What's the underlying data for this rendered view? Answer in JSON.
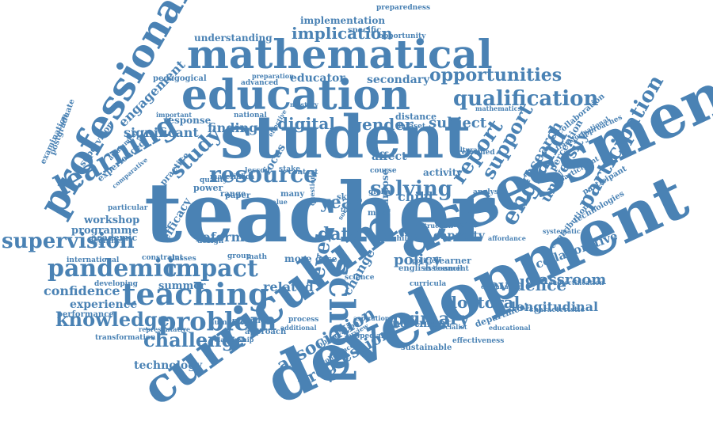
{
  "color": "#4a82b4",
  "words": [
    "teacher",
    "assessment",
    "development",
    "student",
    "curriculum",
    "education",
    "mathematical",
    "professional",
    "teaching",
    "learning",
    "pandemic",
    "impact",
    "school",
    "problem",
    "resource",
    "qualification",
    "supervision",
    "knowledge",
    "challenge",
    "opportunities",
    "implication",
    "england",
    "report",
    "support",
    "participation",
    "primary",
    "research",
    "university",
    "association",
    "progression",
    "evidence",
    "doctoral",
    "classroom",
    "longitudinal",
    "collaborative",
    "solving",
    "study",
    "gender",
    "subject",
    "digital",
    "finding",
    "significant",
    "engagement",
    "confidence",
    "experience",
    "workshop",
    "programme",
    "academic",
    "technology",
    "summer",
    "capacity",
    "policy",
    "year",
    "data",
    "level",
    "change",
    "related",
    "reform",
    "efficacy",
    "postgraduate",
    "examination",
    "supervisor",
    "pedagogical",
    "educator",
    "secondary",
    "understanding",
    "implementation",
    "specific",
    "opportunity",
    "preparedness",
    "focus",
    "distance",
    "english",
    "enactment",
    "department",
    "perception",
    "technologies",
    "participant",
    "council",
    "learner",
    "performance",
    "transformation",
    "reflection",
    "approach",
    "process",
    "children",
    "child",
    "many",
    "more",
    "gcse",
    "context",
    "africa",
    "power",
    "range",
    "group",
    "math",
    "constraint",
    "classes",
    "international",
    "developing",
    "paper",
    "practice",
    "response",
    "experienced",
    "important",
    "national",
    "affect",
    "dataset",
    "activity",
    "analysis",
    "design",
    "quality",
    "observation",
    "sustainable",
    "interview",
    "aspiration",
    "science",
    "mastery",
    "advanced",
    "preparation",
    "collaboration",
    "lesson",
    "stake",
    "skill",
    "course",
    "purpose",
    "pearson",
    "affordance",
    "most",
    "global",
    "time",
    "numeracy",
    "representative",
    "relationship",
    "additional",
    "coherence",
    "explanation",
    "characteristic",
    "specialist",
    "effectiveness",
    "subjectification",
    "transformational",
    "participant",
    "contribution",
    "beginner",
    "particular",
    "attainment",
    "reformed",
    "cultural",
    "systematic",
    "approaches",
    "mathematics",
    "value",
    "instruction",
    "specialist",
    "educational",
    "comparative",
    "assessment",
    "curricula",
    "material",
    "questions",
    "effective",
    "social",
    "policies"
  ]
}
